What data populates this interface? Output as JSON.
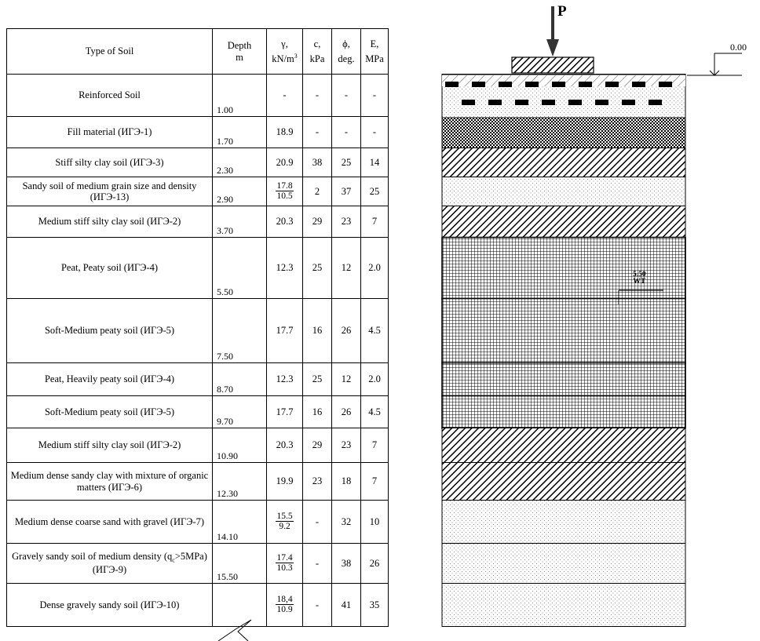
{
  "header": {
    "type": "Type of Soil",
    "depth": "Depth",
    "depth_unit": "m",
    "gamma": "γ,",
    "gamma_unit_base": "kN/m",
    "gamma_unit_exp": "3",
    "c": "c,",
    "c_unit": "kPa",
    "phi": "ϕ,",
    "phi_unit": "deg.",
    "E": "E,",
    "E_unit": "MPa"
  },
  "layers": [
    {
      "name": "Reinforced Soil",
      "depth": "1.00",
      "gamma": "-",
      "c": "-",
      "phi": "-",
      "E": "-"
    },
    {
      "name": "Fill material (ИГЭ-1)",
      "depth": "1.70",
      "gamma": "18.9",
      "c": "-",
      "phi": "-",
      "E": "-"
    },
    {
      "name": "Stiff  silty clay soil  (ИГЭ-3)",
      "depth": "2.30",
      "gamma": "20.9",
      "c": "38",
      "phi": "25",
      "E": "14"
    },
    {
      "name": "Sandy soil of medium grain size and density (ИГЭ-13)",
      "depth": "2.90",
      "gamma_top": "17.8",
      "gamma_bot": "10.5",
      "c": "2",
      "phi": "37",
      "E": "25"
    },
    {
      "name": "Medium stiff  silty clay soil (ИГЭ-2)",
      "depth": "3.70",
      "gamma": "20.3",
      "c": "29",
      "phi": "23",
      "E": "7"
    },
    {
      "name": "Peat, Peaty soil (ИГЭ-4)",
      "depth": "5.50",
      "gamma": "12.3",
      "c": "25",
      "phi": "12",
      "E": "2.0"
    },
    {
      "name": "Soft-Medium peaty soil (ИГЭ-5)",
      "depth": "7.50",
      "gamma": "17.7",
      "c": "16",
      "phi": "26",
      "E": "4.5"
    },
    {
      "name": "Peat, Heavily peaty soil (ИГЭ-4)",
      "depth": "8.70",
      "gamma": "12.3",
      "c": "25",
      "phi": "12",
      "E": "2.0"
    },
    {
      "name": "Soft-Medium peaty soil  (ИГЭ-5)",
      "depth": "9.70",
      "gamma": "17.7",
      "c": "16",
      "phi": "26",
      "E": "4.5"
    },
    {
      "name": "Medium stiff  silty clay soil (ИГЭ-2)",
      "depth": "10.90",
      "gamma": "20.3",
      "c": "29",
      "phi": "23",
      "E": "7"
    },
    {
      "name": "Medium dense sandy clay with mixture of organic matters  (ИГЭ-6)",
      "depth": "12.30",
      "gamma": "19.9",
      "c": "23",
      "phi": "18",
      "E": "7"
    },
    {
      "name": "Medium dense coarse sand with gravel   (ИГЭ-7)",
      "depth": "14.10",
      "gamma_top": "15.5",
      "gamma_bot": "9.2",
      "c": "-",
      "phi": "32",
      "E": "10"
    },
    {
      "name_a": "Gravely sandy soil of medium density  (q",
      "name_sub": "c",
      "name_b": ">5MPa) (ИГЭ-9)",
      "depth": "15.50",
      "gamma_top": "17.4",
      "gamma_bot": "10.3",
      "c": "-",
      "phi": "38",
      "E": "26"
    },
    {
      "name": "Dense gravely sandy soil (ИГЭ-10)",
      "depth": "",
      "gamma_top": "18,4",
      "gamma_bot": "10.9",
      "c": "-",
      "phi": "41",
      "E": "35"
    }
  ],
  "profile": {
    "load_label": "P",
    "ground_elevation": "0.00",
    "water_table_label_top": "5.50",
    "water_table_label_bot": "WT",
    "hatch_by_layer": [
      "reinforced",
      "crosshatch",
      "diagonal",
      "dots",
      "diagonal",
      "grid",
      "grid",
      "grid",
      "grid",
      "diagonal",
      "diagonal",
      "dots",
      "dots",
      "dots"
    ]
  }
}
